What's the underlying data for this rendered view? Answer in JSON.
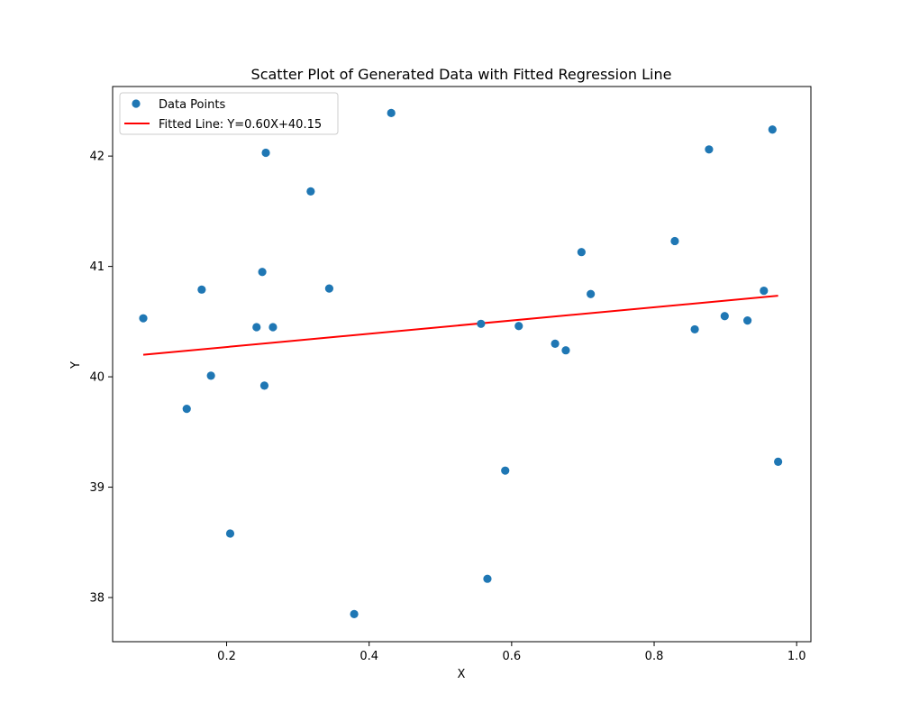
{
  "chart_data": {
    "type": "scatter",
    "title": "Scatter Plot of Generated Data with Fitted Regression Line",
    "xlabel": "X",
    "ylabel": "Y",
    "xlim": [
      0.04,
      1.02
    ],
    "ylim": [
      37.6,
      42.63
    ],
    "xticks": [
      0.2,
      0.4,
      0.6,
      0.8,
      1.0
    ],
    "xtick_labels": [
      "0.2",
      "0.4",
      "0.6",
      "0.8",
      "1.0"
    ],
    "yticks": [
      38,
      39,
      40,
      41,
      42
    ],
    "ytick_labels": [
      "38",
      "39",
      "40",
      "41",
      "42"
    ],
    "grid": false,
    "legend_placement": "top-left",
    "series": [
      {
        "name": "Data Points",
        "kind": "scatter",
        "color": "#1f77b4",
        "points": [
          {
            "x": 0.083,
            "y": 40.53
          },
          {
            "x": 0.144,
            "y": 39.71
          },
          {
            "x": 0.165,
            "y": 40.79
          },
          {
            "x": 0.178,
            "y": 40.01
          },
          {
            "x": 0.205,
            "y": 38.58
          },
          {
            "x": 0.242,
            "y": 40.45
          },
          {
            "x": 0.25,
            "y": 40.95
          },
          {
            "x": 0.253,
            "y": 39.92
          },
          {
            "x": 0.255,
            "y": 42.03
          },
          {
            "x": 0.265,
            "y": 40.45
          },
          {
            "x": 0.318,
            "y": 41.68
          },
          {
            "x": 0.344,
            "y": 40.8
          },
          {
            "x": 0.379,
            "y": 37.85
          },
          {
            "x": 0.431,
            "y": 42.39
          },
          {
            "x": 0.557,
            "y": 40.48
          },
          {
            "x": 0.566,
            "y": 38.17
          },
          {
            "x": 0.591,
            "y": 39.15
          },
          {
            "x": 0.61,
            "y": 40.46
          },
          {
            "x": 0.661,
            "y": 40.3
          },
          {
            "x": 0.676,
            "y": 40.24
          },
          {
            "x": 0.698,
            "y": 41.13
          },
          {
            "x": 0.711,
            "y": 40.75
          },
          {
            "x": 0.829,
            "y": 41.23
          },
          {
            "x": 0.857,
            "y": 40.43
          },
          {
            "x": 0.877,
            "y": 42.06
          },
          {
            "x": 0.899,
            "y": 40.55
          },
          {
            "x": 0.931,
            "y": 40.51
          },
          {
            "x": 0.954,
            "y": 40.78
          },
          {
            "x": 0.966,
            "y": 42.24
          },
          {
            "x": 0.974,
            "y": 39.23
          }
        ]
      },
      {
        "name": "Fitted Line: Y=0.60X+40.15",
        "kind": "line",
        "color": "#ff0000",
        "slope": 0.6,
        "intercept": 40.15,
        "x_range": [
          0.083,
          0.974
        ]
      }
    ]
  }
}
